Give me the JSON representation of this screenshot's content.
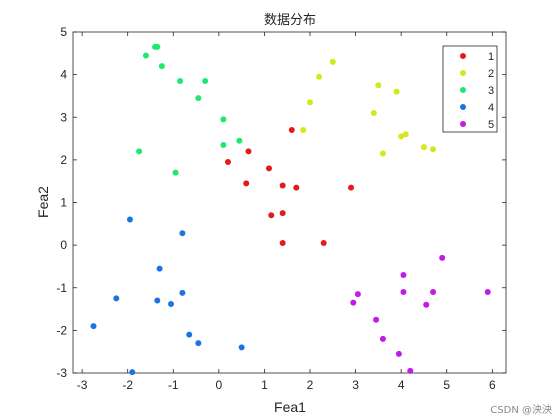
{
  "chart_data": {
    "type": "scatter",
    "title": "数据分布",
    "xlabel": "Fea1",
    "ylabel": "Fea2",
    "xlim": [
      -3.2,
      6.3
    ],
    "ylim": [
      -3,
      5
    ],
    "xticks": [
      -3,
      -2,
      -1,
      0,
      1,
      2,
      3,
      4,
      5,
      6
    ],
    "yticks": [
      -3,
      -2,
      -1,
      0,
      1,
      2,
      3,
      4,
      5
    ],
    "grid": false,
    "legend_position": "top-right",
    "series": [
      {
        "name": "1",
        "color": "#e41a1c",
        "points": [
          [
            0.2,
            1.95
          ],
          [
            0.65,
            2.2
          ],
          [
            0.6,
            1.45
          ],
          [
            1.1,
            1.8
          ],
          [
            1.6,
            2.7
          ],
          [
            1.4,
            1.4
          ],
          [
            1.7,
            1.35
          ],
          [
            1.15,
            0.7
          ],
          [
            1.4,
            0.75
          ],
          [
            2.9,
            1.35
          ],
          [
            1.4,
            0.05
          ],
          [
            2.3,
            0.05
          ]
        ]
      },
      {
        "name": "2",
        "color": "#d4e81a",
        "points": [
          [
            2.5,
            4.3
          ],
          [
            2.2,
            3.95
          ],
          [
            2.0,
            3.35
          ],
          [
            1.85,
            2.7
          ],
          [
            3.5,
            3.75
          ],
          [
            3.9,
            3.6
          ],
          [
            3.4,
            3.1
          ],
          [
            4.0,
            2.55
          ],
          [
            4.1,
            2.6
          ],
          [
            4.5,
            2.3
          ],
          [
            4.7,
            2.25
          ],
          [
            3.6,
            2.15
          ]
        ]
      },
      {
        "name": "3",
        "color": "#1de870",
        "points": [
          [
            -1.4,
            4.65
          ],
          [
            -1.35,
            4.65
          ],
          [
            -1.6,
            4.45
          ],
          [
            -1.25,
            4.2
          ],
          [
            -0.85,
            3.85
          ],
          [
            -0.3,
            3.85
          ],
          [
            -0.45,
            3.45
          ],
          [
            0.1,
            2.95
          ],
          [
            0.1,
            2.35
          ],
          [
            0.45,
            2.45
          ],
          [
            -1.75,
            2.2
          ],
          [
            -0.95,
            1.7
          ]
        ]
      },
      {
        "name": "4",
        "color": "#1a74e8",
        "points": [
          [
            -1.95,
            0.6
          ],
          [
            -0.8,
            0.28
          ],
          [
            -1.3,
            -0.55
          ],
          [
            -2.25,
            -1.25
          ],
          [
            -1.35,
            -1.3
          ],
          [
            -1.05,
            -1.38
          ],
          [
            -0.8,
            -1.12
          ],
          [
            -2.75,
            -1.9
          ],
          [
            -0.65,
            -2.1
          ],
          [
            -0.45,
            -2.3
          ],
          [
            0.5,
            -2.4
          ],
          [
            -1.9,
            -2.98
          ]
        ]
      },
      {
        "name": "5",
        "color": "#c21ae8",
        "points": [
          [
            4.9,
            -0.3
          ],
          [
            4.05,
            -0.7
          ],
          [
            3.05,
            -1.15
          ],
          [
            2.95,
            -1.35
          ],
          [
            4.05,
            -1.1
          ],
          [
            4.7,
            -1.1
          ],
          [
            5.9,
            -1.1
          ],
          [
            4.55,
            -1.4
          ],
          [
            3.45,
            -1.75
          ],
          [
            3.6,
            -2.2
          ],
          [
            3.95,
            -2.55
          ],
          [
            4.2,
            -2.95
          ]
        ]
      }
    ]
  },
  "watermark": "CSDN @泱泱"
}
